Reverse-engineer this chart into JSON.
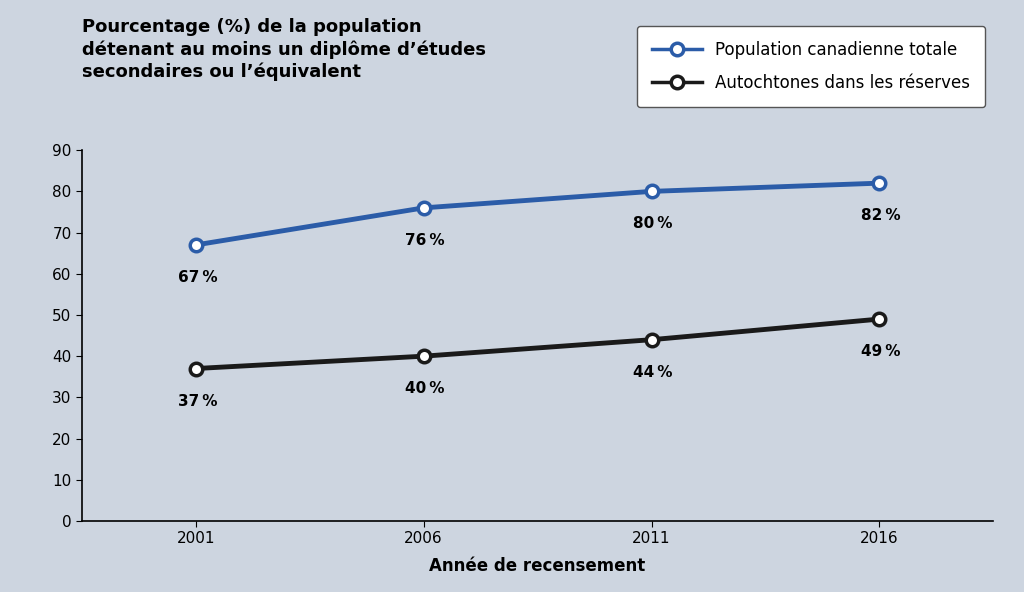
{
  "years": [
    2001,
    2006,
    2011,
    2016
  ],
  "canadian_total": [
    67,
    76,
    80,
    82
  ],
  "autochtones": [
    37,
    40,
    44,
    49
  ],
  "canadian_color": "#2b5ca8",
  "autochtones_color": "#1a1a1a",
  "background_color": "#cdd5e0",
  "legend_bg": "#ffffff",
  "title_line1": "Pourcentage (%) de la population",
  "title_line2": "détenant au moins un diplôme d’études",
  "title_line3": "secondaires ou l’équivalent",
  "xlabel": "Année de recensement",
  "legend_canadian": "Population canadienne totale",
  "legend_autochtones": "Autochtones dans les réserves",
  "ca_labels": [
    "67 %",
    "76 %",
    "80 %",
    "82 %"
  ],
  "auto_labels": [
    "37 %",
    "40 %",
    "44 %",
    "49 %"
  ],
  "ylim": [
    0,
    90
  ],
  "yticks": [
    0,
    10,
    20,
    30,
    40,
    50,
    60,
    70,
    80,
    90
  ],
  "xlim_left": 1998.5,
  "xlim_right": 2018.5,
  "title_fontsize": 13,
  "label_fontsize": 12,
  "tick_fontsize": 11,
  "annotation_fontsize": 11,
  "legend_fontsize": 12
}
